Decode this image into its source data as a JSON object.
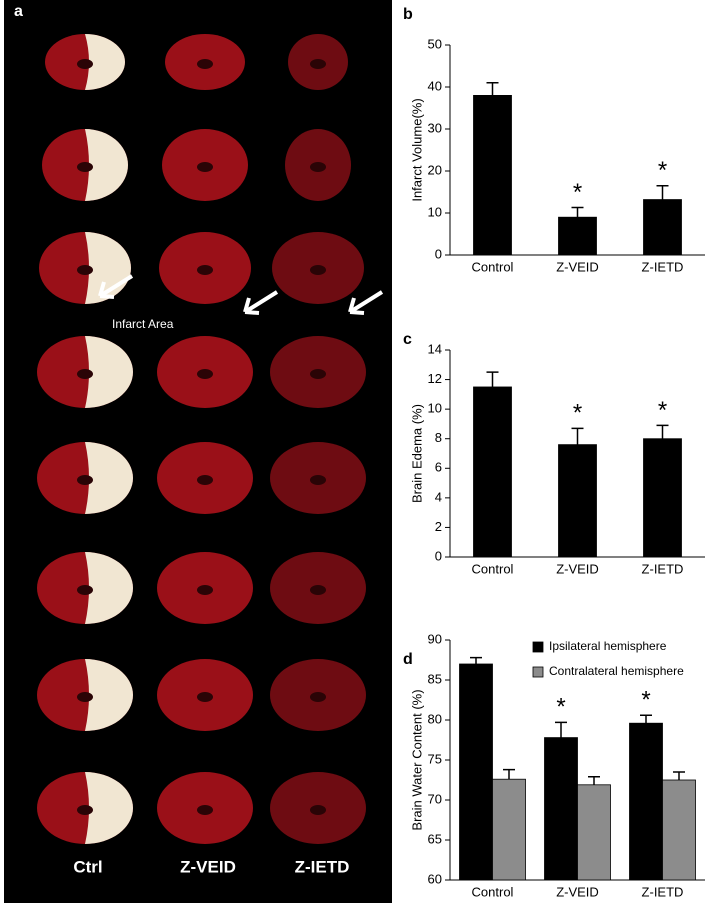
{
  "panel_a": {
    "panel_label": "a",
    "annotation": "Infarct Area",
    "columns": [
      "Ctrl",
      "Z-VEID",
      "Z-IETD"
    ]
  },
  "chart_data": [
    {
      "type": "bar",
      "panel_label": "b",
      "y_label": "Infarct Volume(%)",
      "categories": [
        "Control",
        "Z-VEID",
        "Z-IETD"
      ],
      "values": [
        38,
        9,
        13.2
      ],
      "errors": [
        3,
        2.3,
        3.3
      ],
      "markers": [
        null,
        "*",
        "*"
      ],
      "color": "#000000",
      "ylim": [
        0,
        50
      ],
      "yticks": [
        0,
        10,
        20,
        30,
        40,
        50
      ]
    },
    {
      "type": "bar",
      "panel_label": "c",
      "y_label": "Brain Edema (%)",
      "categories": [
        "Control",
        "Z-VEID",
        "Z-IETD"
      ],
      "values": [
        11.5,
        7.6,
        8
      ],
      "errors": [
        1,
        1.1,
        0.9
      ],
      "markers": [
        null,
        "*",
        "*"
      ],
      "color": "#000000",
      "ylim": [
        0,
        14
      ],
      "yticks": [
        0,
        2,
        4,
        6,
        8,
        10,
        12,
        14
      ]
    },
    {
      "type": "bar",
      "panel_label": "d",
      "y_label": "Brain Water Content (%)",
      "categories": [
        "Control",
        "Z-VEID",
        "Z-IETD"
      ],
      "series": [
        {
          "name": "Ipsilateral hemisphere",
          "color": "#000000",
          "values": [
            87,
            77.8,
            79.6
          ],
          "errors": [
            0.8,
            1.9,
            1
          ]
        },
        {
          "name": "Contralateral hemisphere",
          "color": "#8c8c8c",
          "values": [
            72.6,
            71.9,
            72.5
          ],
          "errors": [
            1.2,
            1,
            1
          ]
        }
      ],
      "markers": [
        null,
        "*",
        "*"
      ],
      "legend": "upper right",
      "ylim": [
        60,
        90
      ],
      "yticks": [
        60,
        65,
        70,
        75,
        80,
        85,
        90
      ]
    }
  ]
}
